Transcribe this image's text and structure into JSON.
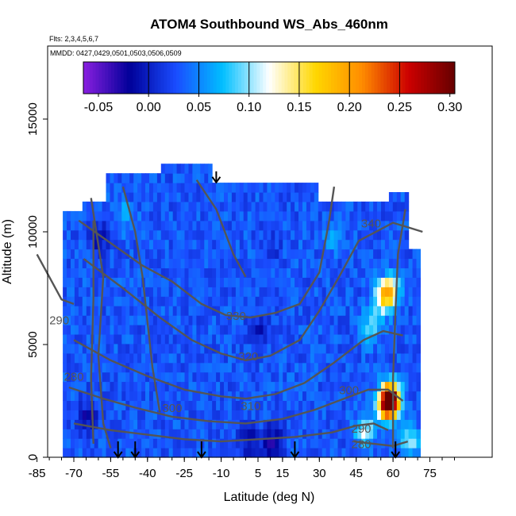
{
  "chart_data": {
    "type": "heatmap",
    "title": "ATOM4 Southbound WS_Abs_460nm",
    "flights_note": "Flts: 2,3,4,5,6,7",
    "dates_note": "MMDD: 0427,0429,0501,0503,0506,0509",
    "xlabel": "Latitude (deg N)",
    "ylabel": "Altitude (m)",
    "xlim": [
      -85,
      85
    ],
    "ylim": [
      0,
      17500
    ],
    "x_ticks": [
      -85,
      -70,
      -55,
      -40,
      -25,
      -10,
      5,
      15,
      30,
      45,
      60,
      75
    ],
    "y_ticks": [
      0,
      5000,
      10000,
      15000
    ],
    "colorbar": {
      "ticks": [
        "-0.05",
        "0.00",
        "0.05",
        "0.10",
        "0.15",
        "0.20",
        "0.25",
        "0.30"
      ],
      "range": [
        -0.065,
        0.305
      ],
      "colors": [
        "#8a1fe0",
        "#000099",
        "#1a4dff",
        "#00bfff",
        "#ffffff",
        "#ffd700",
        "#ff8c00",
        "#cc0000",
        "#660000"
      ]
    },
    "contour_levels": [
      "280",
      "290",
      "300",
      "310",
      "320",
      "330",
      "340",
      "290",
      "280",
      "300"
    ],
    "flight_track_markers_lat": [
      -52,
      -45,
      -18,
      20,
      61,
      -12
    ],
    "background_value": 0.03,
    "hotspots": [
      {
        "lat": 58,
        "alt": 2400,
        "value": 0.29
      },
      {
        "lat": 57,
        "alt": 2000,
        "value": 0.16
      },
      {
        "lat": 55,
        "alt": 6800,
        "value": 0.13
      },
      {
        "lat": 58,
        "alt": 7200,
        "value": 0.14
      },
      {
        "lat": 50,
        "alt": 5600,
        "value": 0.09
      },
      {
        "lat": 48,
        "alt": 1000,
        "value": 0.12
      },
      {
        "lat": 66,
        "alt": 500,
        "value": 0.1
      },
      {
        "lat": 10,
        "alt": 500,
        "value": -0.03
      },
      {
        "lat": 0,
        "alt": 600,
        "value": -0.01
      },
      {
        "lat": -60,
        "alt": 9500,
        "value": -0.01
      },
      {
        "lat": -50,
        "alt": 10500,
        "value": 0.06
      },
      {
        "lat": -65,
        "alt": 1600,
        "value": -0.02
      },
      {
        "lat": 5,
        "alt": 5500,
        "value": 0.0
      },
      {
        "lat": 10,
        "alt": 9000,
        "value": 0.01
      },
      {
        "lat": 35,
        "alt": 9500,
        "value": 0.06
      }
    ]
  }
}
